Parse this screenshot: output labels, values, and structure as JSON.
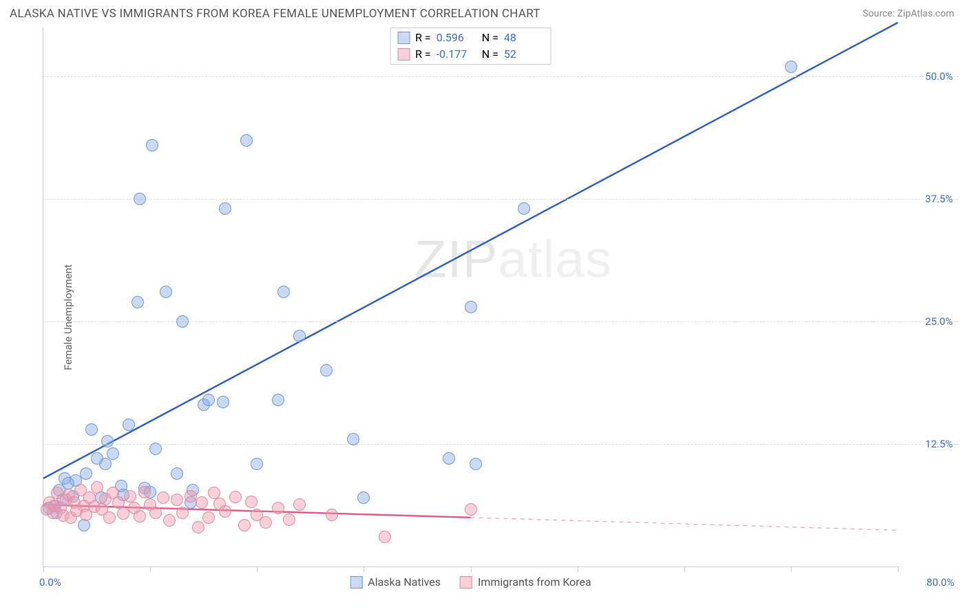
{
  "header": {
    "title": "ALASKA NATIVE VS IMMIGRANTS FROM KOREA FEMALE UNEMPLOYMENT CORRELATION CHART",
    "source": "Source: ZipAtlas.com"
  },
  "chart": {
    "type": "scatter",
    "ylabel": "Female Unemployment",
    "watermark": "ZIPatlas",
    "background_color": "#ffffff",
    "grid_color": "#dddddd",
    "axis_color": "#cccccc",
    "xlim": [
      0,
      80
    ],
    "ylim": [
      0,
      55
    ],
    "x_labels": [
      {
        "value": 0,
        "text": "0.0%"
      },
      {
        "value": 80,
        "text": "80.0%"
      }
    ],
    "xtick_positions": [
      0,
      10,
      20,
      30,
      40,
      50,
      60,
      70,
      80
    ],
    "y_gridlines": [
      {
        "value": 12.5,
        "label": "12.5%"
      },
      {
        "value": 25.0,
        "label": "25.0%"
      },
      {
        "value": 37.5,
        "label": "37.5%"
      },
      {
        "value": 50.0,
        "label": "50.0%"
      }
    ],
    "tick_label_color": "#3b6fd6",
    "tick_label_fontsize": 15,
    "series": [
      {
        "key": "alaska",
        "label": "Alaska Natives",
        "R": "0.596",
        "N": "48",
        "marker_fill": "rgba(132,170,224,0.45)",
        "marker_stroke": "#6f9bd8",
        "marker_radius": 9,
        "line_color": "#2f62c9",
        "line_width": 2.5,
        "trend": {
          "x1": 0,
          "y1": 9.0,
          "x2": 80,
          "y2": 55.5,
          "solid_until_x": 80
        },
        "points": [
          [
            0.5,
            6.0
          ],
          [
            1.0,
            6.2
          ],
          [
            1.2,
            5.5
          ],
          [
            1.5,
            7.8
          ],
          [
            1.8,
            6.8
          ],
          [
            2.0,
            9.0
          ],
          [
            2.3,
            8.5
          ],
          [
            2.8,
            7.2
          ],
          [
            3.0,
            8.8
          ],
          [
            3.8,
            4.2
          ],
          [
            4.0,
            9.5
          ],
          [
            4.5,
            14.0
          ],
          [
            5.0,
            11.0
          ],
          [
            5.4,
            7.0
          ],
          [
            5.8,
            10.5
          ],
          [
            6.0,
            12.8
          ],
          [
            6.5,
            11.5
          ],
          [
            7.3,
            8.2
          ],
          [
            7.5,
            7.3
          ],
          [
            8.0,
            14.5
          ],
          [
            8.8,
            27.0
          ],
          [
            9.0,
            37.5
          ],
          [
            9.5,
            8.0
          ],
          [
            10.0,
            7.6
          ],
          [
            10.2,
            43.0
          ],
          [
            10.5,
            12.0
          ],
          [
            11.5,
            28.0
          ],
          [
            12.5,
            9.5
          ],
          [
            13.0,
            25.0
          ],
          [
            13.8,
            6.5
          ],
          [
            14.0,
            7.8
          ],
          [
            15.0,
            16.5
          ],
          [
            15.5,
            17.0
          ],
          [
            16.8,
            16.8
          ],
          [
            17.0,
            36.5
          ],
          [
            19.0,
            43.5
          ],
          [
            20.0,
            10.5
          ],
          [
            22.0,
            17.0
          ],
          [
            22.5,
            28.0
          ],
          [
            24.0,
            23.5
          ],
          [
            26.5,
            20.0
          ],
          [
            29.0,
            13.0
          ],
          [
            30.0,
            7.0
          ],
          [
            38.0,
            11.0
          ],
          [
            40.0,
            26.5
          ],
          [
            40.5,
            10.5
          ],
          [
            45.0,
            36.5
          ],
          [
            70.0,
            51.0
          ]
        ]
      },
      {
        "key": "korea",
        "label": "Immigrants from Korea",
        "R": "-0.177",
        "N": "52",
        "marker_fill": "rgba(240,150,170,0.45)",
        "marker_stroke": "#e08ca0",
        "marker_radius": 9,
        "line_color": "#e75d88",
        "line_width": 2.5,
        "trend": {
          "x1": 0,
          "y1": 6.3,
          "x2": 80,
          "y2": 3.7,
          "solid_until_x": 40
        },
        "points": [
          [
            0.3,
            5.8
          ],
          [
            0.6,
            6.5
          ],
          [
            0.9,
            5.5
          ],
          [
            1.1,
            6.2
          ],
          [
            1.3,
            7.5
          ],
          [
            1.6,
            6.0
          ],
          [
            1.9,
            5.2
          ],
          [
            2.1,
            6.8
          ],
          [
            2.4,
            7.3
          ],
          [
            2.6,
            5.0
          ],
          [
            2.9,
            6.5
          ],
          [
            3.1,
            5.7
          ],
          [
            3.5,
            7.8
          ],
          [
            3.8,
            6.2
          ],
          [
            4.0,
            5.3
          ],
          [
            4.3,
            7.0
          ],
          [
            4.8,
            6.1
          ],
          [
            5.0,
            8.1
          ],
          [
            5.5,
            5.8
          ],
          [
            5.8,
            6.9
          ],
          [
            6.2,
            5.0
          ],
          [
            6.5,
            7.5
          ],
          [
            7.0,
            6.5
          ],
          [
            7.5,
            5.4
          ],
          [
            8.1,
            7.2
          ],
          [
            8.5,
            6.0
          ],
          [
            9.0,
            5.1
          ],
          [
            9.5,
            7.6
          ],
          [
            10.0,
            6.3
          ],
          [
            10.5,
            5.5
          ],
          [
            11.2,
            7.0
          ],
          [
            11.8,
            4.7
          ],
          [
            12.5,
            6.8
          ],
          [
            13.0,
            5.5
          ],
          [
            13.8,
            7.2
          ],
          [
            14.5,
            4.0
          ],
          [
            14.8,
            6.5
          ],
          [
            15.5,
            5.0
          ],
          [
            16.0,
            7.5
          ],
          [
            16.5,
            6.4
          ],
          [
            17.0,
            5.6
          ],
          [
            18.0,
            7.1
          ],
          [
            18.8,
            4.2
          ],
          [
            19.5,
            6.6
          ],
          [
            20.0,
            5.3
          ],
          [
            20.8,
            4.5
          ],
          [
            22.0,
            6.0
          ],
          [
            23.0,
            4.8
          ],
          [
            24.0,
            6.3
          ],
          [
            27.0,
            5.3
          ],
          [
            32.0,
            3.0
          ],
          [
            40.0,
            5.8
          ]
        ]
      }
    ]
  },
  "stats_box": {
    "R_label": "R =",
    "N_label": "N ="
  },
  "bottom_legend_items": [
    {
      "series_key": "alaska"
    },
    {
      "series_key": "korea"
    }
  ]
}
